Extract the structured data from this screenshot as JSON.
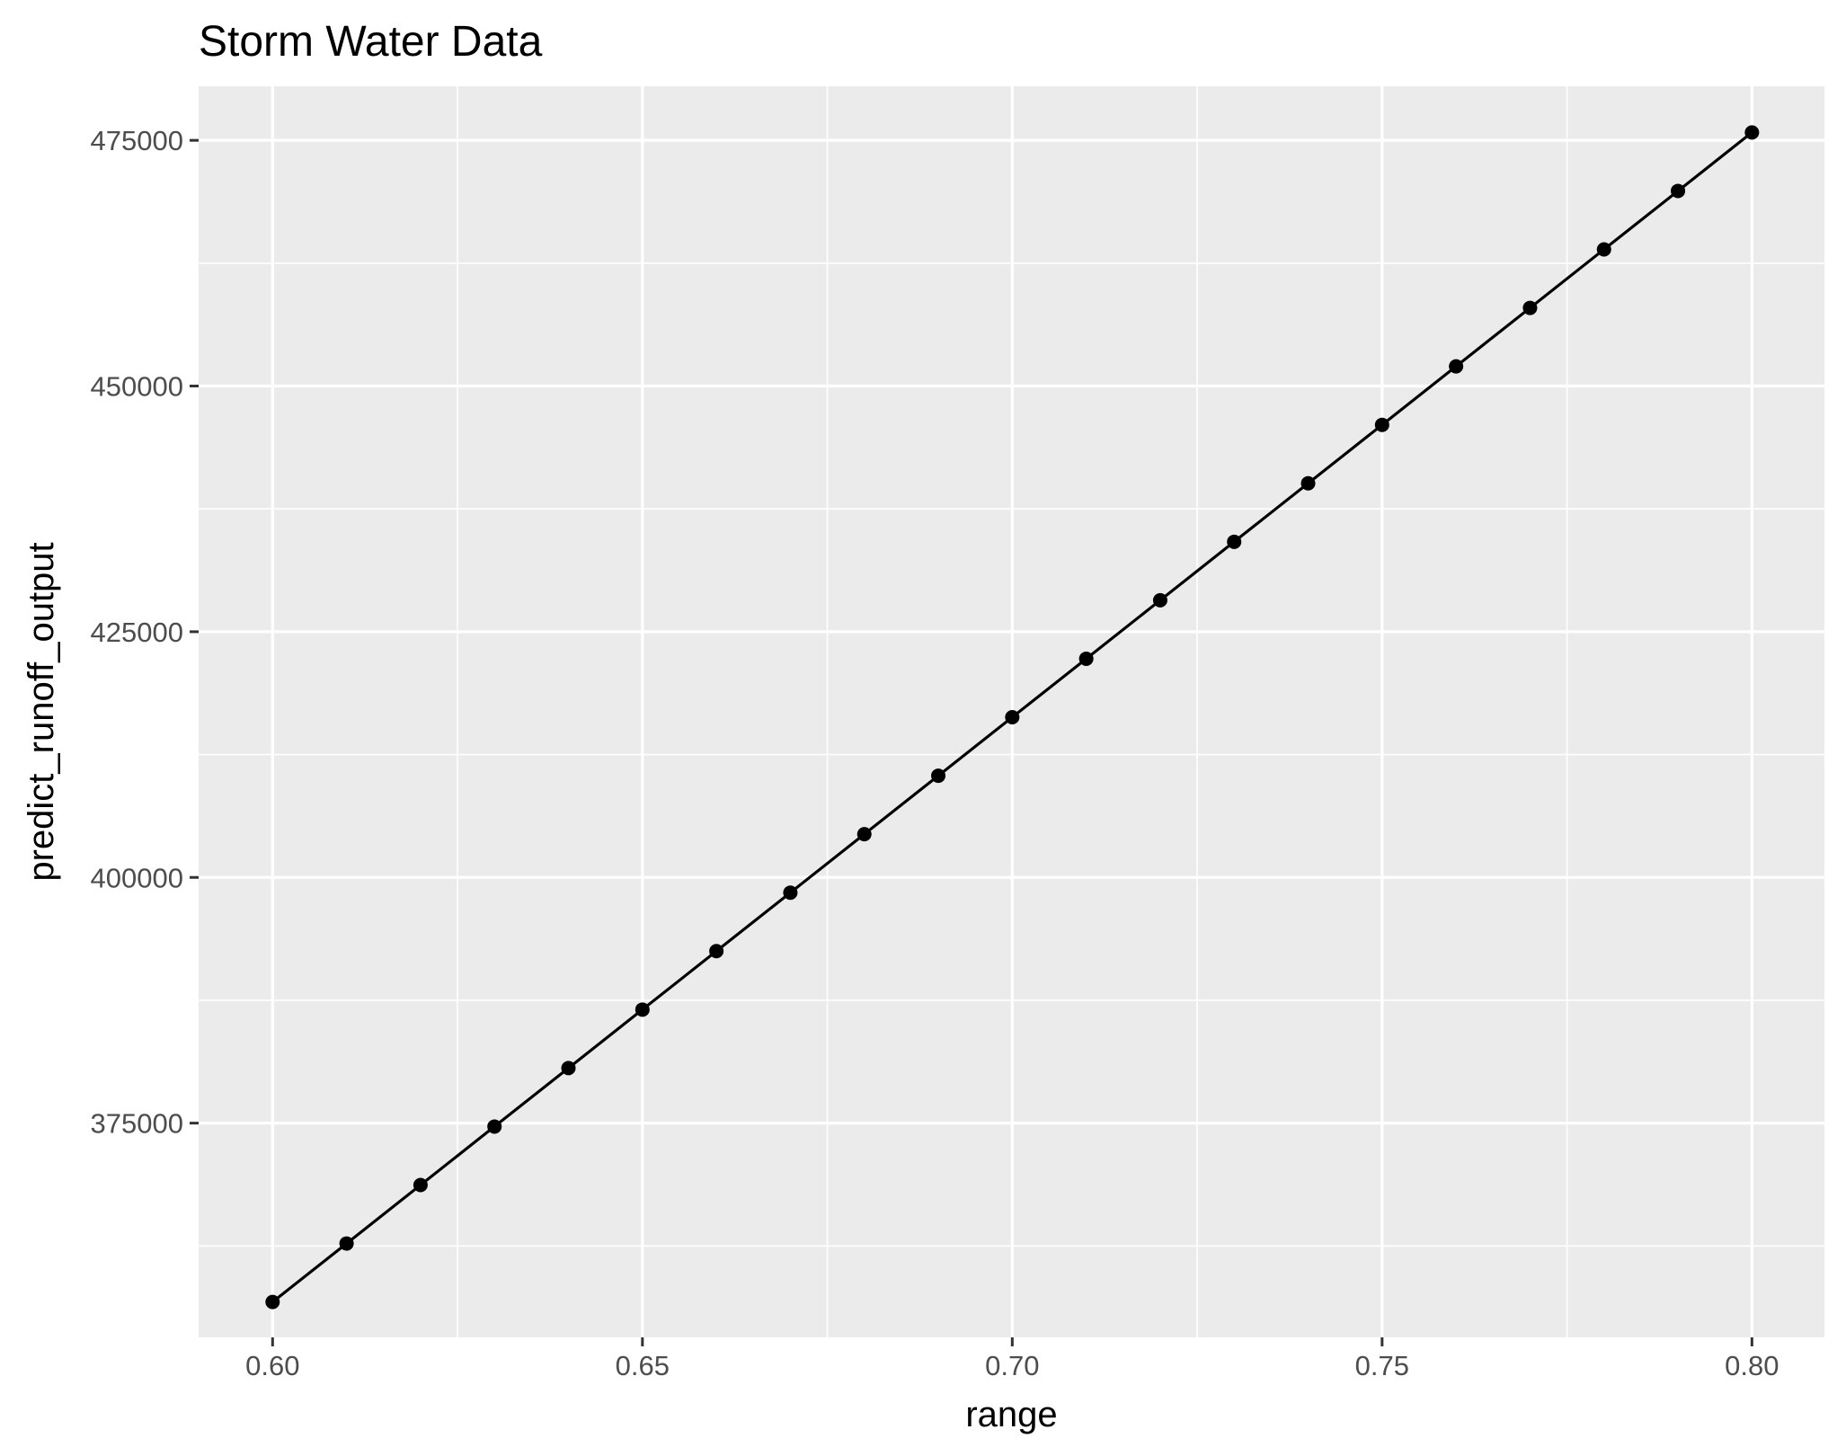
{
  "chart_data": {
    "type": "line",
    "title": "Storm Water Data",
    "xlabel": "range",
    "ylabel": "predict_runoff_output",
    "xlim": [
      0.59,
      0.8098
    ],
    "ylim": [
      353200,
      480500
    ],
    "x_ticks": [
      "0.60",
      "0.65",
      "0.70",
      "0.75",
      "0.80"
    ],
    "x_tick_values": [
      0.6,
      0.65,
      0.7,
      0.75,
      0.8
    ],
    "y_ticks": [
      "375000",
      "400000",
      "425000",
      "450000",
      "475000"
    ],
    "y_tick_values": [
      375000,
      400000,
      425000,
      450000,
      475000
    ],
    "grid": true,
    "legend": "none",
    "colors": {
      "panel": "#ebebeb",
      "grid": "#ffffff",
      "series": "#000000"
    },
    "series": [
      {
        "markers": true,
        "x": [
          0.6,
          0.61,
          0.62,
          0.63,
          0.64,
          0.65,
          0.66,
          0.67,
          0.68,
          0.69,
          0.7,
          0.71,
          0.72,
          0.73,
          0.74,
          0.75,
          0.76,
          0.77,
          0.78,
          0.79,
          0.8
        ],
        "y": [
          356800,
          362750,
          368700,
          374650,
          380600,
          386550,
          392500,
          398450,
          404400,
          410350,
          416300,
          422250,
          428200,
          434150,
          440100,
          446050,
          452000,
          457950,
          463900,
          469850,
          475800
        ]
      }
    ]
  }
}
